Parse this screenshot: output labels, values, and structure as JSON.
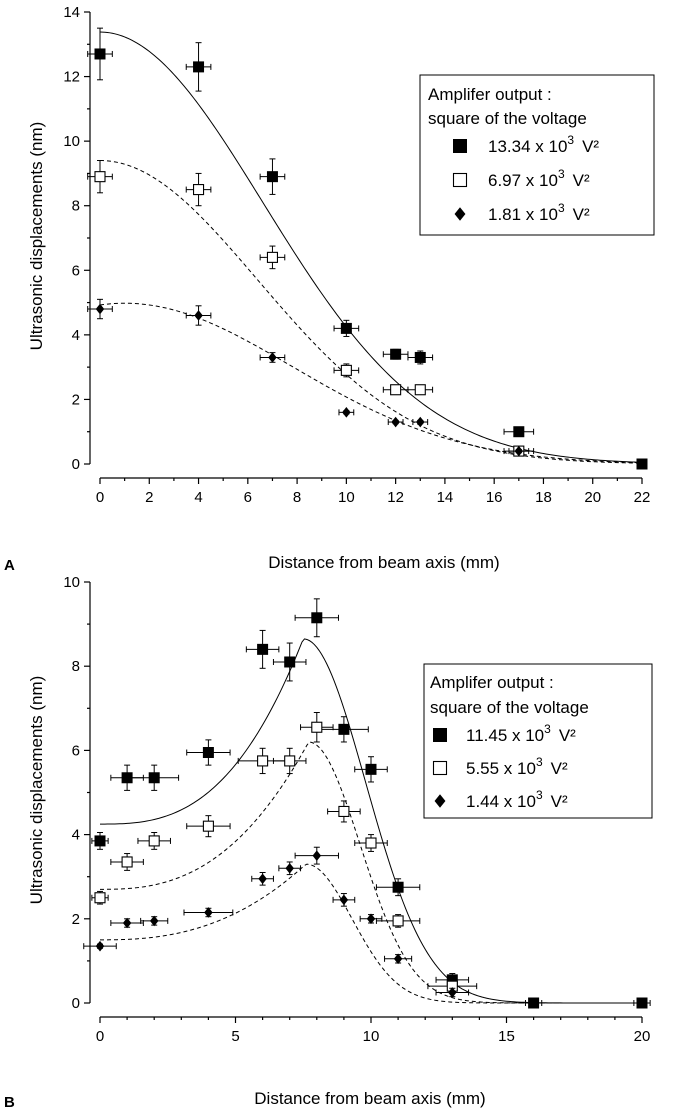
{
  "chart_data": [
    {
      "panel": "A",
      "type": "scatter",
      "xlabel": "Distance from  beam axis (mm)",
      "ylabel": "Ultrasonic displacements (nm)",
      "xlim": [
        0,
        22
      ],
      "ylim": [
        0,
        14
      ],
      "xticks": [
        0,
        2,
        4,
        6,
        8,
        10,
        12,
        14,
        16,
        18,
        20,
        22
      ],
      "yticks": [
        0,
        2,
        4,
        6,
        8,
        10,
        12,
        14
      ],
      "grid": false,
      "legend_position": "top-right",
      "legend_title": [
        "Amplifer output :",
        "square of the voltage"
      ],
      "series": [
        {
          "name": "13.34 x 10^3 V²",
          "label_parts": {
            "mantissa": "13.34",
            "times": "x 10",
            "exponent": "3",
            "unit": "V²"
          },
          "marker": "filled-square",
          "line_style": "solid",
          "points": [
            {
              "x": 0,
              "y": 12.7,
              "xerr": 0.5,
              "yerr": 0.8
            },
            {
              "x": 4,
              "y": 12.3,
              "xerr": 0.5,
              "yerr": 0.75
            },
            {
              "x": 7,
              "y": 8.9,
              "xerr": 0.5,
              "yerr": 0.55
            },
            {
              "x": 10,
              "y": 4.2,
              "xerr": 0.5,
              "yerr": 0.25
            },
            {
              "x": 12,
              "y": 3.4,
              "xerr": 0.5,
              "yerr": 0.15
            },
            {
              "x": 13,
              "y": 3.3,
              "xerr": 0.5,
              "yerr": 0.2
            },
            {
              "x": 17,
              "y": 1.0,
              "xerr": 0.6,
              "yerr": 0.1
            },
            {
              "x": 22,
              "y": 0.0,
              "xerr": 0.2,
              "yerr": 0.05
            }
          ],
          "fit": {
            "amplitude": 13.38,
            "center": 0,
            "sigma": 6.6
          }
        },
        {
          "name": "6.97 x 10^3 V²",
          "label_parts": {
            "mantissa": "6.97",
            "times": "x 10",
            "exponent": "3",
            "unit": "V²"
          },
          "marker": "open-square",
          "line_style": "dashed",
          "points": [
            {
              "x": 0,
              "y": 8.9,
              "xerr": 0.5,
              "yerr": 0.5
            },
            {
              "x": 4,
              "y": 8.5,
              "xerr": 0.5,
              "yerr": 0.5
            },
            {
              "x": 7,
              "y": 6.4,
              "xerr": 0.5,
              "yerr": 0.35
            },
            {
              "x": 10,
              "y": 2.9,
              "xerr": 0.5,
              "yerr": 0.2
            },
            {
              "x": 12,
              "y": 2.3,
              "xerr": 0.5,
              "yerr": 0.1
            },
            {
              "x": 13,
              "y": 2.3,
              "xerr": 0.5,
              "yerr": 0.1
            },
            {
              "x": 17,
              "y": 0.4,
              "xerr": 0.6,
              "yerr": 0.1
            }
          ],
          "fit": {
            "amplitude": 9.4,
            "center": 0,
            "sigma": 6.4
          }
        },
        {
          "name": "1.81 x 10^3 V²",
          "label_parts": {
            "mantissa": "1.81",
            "times": "x 10",
            "exponent": "3",
            "unit": "V²"
          },
          "marker": "filled-diamond",
          "line_style": "dashed",
          "points": [
            {
              "x": 0,
              "y": 4.8,
              "xerr": 0.5,
              "yerr": 0.3
            },
            {
              "x": 4,
              "y": 4.6,
              "xerr": 0.5,
              "yerr": 0.3
            },
            {
              "x": 7,
              "y": 3.3,
              "xerr": 0.5,
              "yerr": 0.15
            },
            {
              "x": 10,
              "y": 1.6,
              "xerr": 0.3,
              "yerr": 0.05
            },
            {
              "x": 12,
              "y": 1.3,
              "xerr": 0.3,
              "yerr": 0.05
            },
            {
              "x": 13,
              "y": 1.3,
              "xerr": 0.3,
              "yerr": 0.05
            },
            {
              "x": 17,
              "y": 0.4,
              "xerr": 0.4,
              "yerr": 0.05
            }
          ],
          "fit": {
            "amplitude": 4.98,
            "center": 1.0,
            "sigma": 6.8
          }
        }
      ]
    },
    {
      "panel": "B",
      "type": "scatter",
      "xlabel": "Distance from beam axis (mm)",
      "ylabel": "Ultrasonic displacements (nm)",
      "xlim": [
        0,
        20
      ],
      "ylim": [
        0,
        10
      ],
      "xticks": [
        0,
        5,
        10,
        15,
        20
      ],
      "yticks": [
        0,
        2,
        4,
        6,
        8,
        10
      ],
      "grid": false,
      "legend_position": "right",
      "legend_title": [
        "Amplifer output :",
        "square of the voltage"
      ],
      "series": [
        {
          "name": "11.45 x 10^3 V²",
          "label_parts": {
            "mantissa": "11.45",
            "times": "x 10",
            "exponent": "3",
            "unit": "V²"
          },
          "marker": "filled-square",
          "line_style": "solid",
          "points": [
            {
              "x": 0,
              "y": 3.85,
              "xerr": 0.3,
              "yerr": 0.2
            },
            {
              "x": 1,
              "y": 5.35,
              "xerr": 0.6,
              "yerr": 0.3
            },
            {
              "x": 2,
              "y": 5.35,
              "xerr": 0.9,
              "yerr": 0.3
            },
            {
              "x": 4,
              "y": 5.95,
              "xerr": 0.8,
              "yerr": 0.3
            },
            {
              "x": 6,
              "y": 8.4,
              "xerr": 0.6,
              "yerr": 0.45
            },
            {
              "x": 7,
              "y": 8.1,
              "xerr": 0.6,
              "yerr": 0.45
            },
            {
              "x": 8,
              "y": 9.15,
              "xerr": 0.8,
              "yerr": 0.45
            },
            {
              "x": 9,
              "y": 6.5,
              "xerr": 0.9,
              "yerr": 0.3
            },
            {
              "x": 10,
              "y": 5.55,
              "xerr": 0.6,
              "yerr": 0.3
            },
            {
              "x": 11,
              "y": 2.75,
              "xerr": 0.8,
              "yerr": 0.2
            },
            {
              "x": 13,
              "y": 0.55,
              "xerr": 0.6,
              "yerr": 0.15
            },
            {
              "x": 16,
              "y": 0.0,
              "xerr": 0.3,
              "yerr": 0.05
            },
            {
              "x": 20,
              "y": 0.0,
              "xerr": 0.3,
              "yerr": 0.05
            }
          ],
          "fit": {
            "baseline": 4.25,
            "peak_x": 7.5,
            "peak_y": 8.65,
            "left_exponent": 2.8,
            "right_sigma": 2.3
          }
        },
        {
          "name": "5.55 x 10^3 V²",
          "label_parts": {
            "mantissa": "5.55",
            "times": "x 10",
            "exponent": "3",
            "unit": "V²"
          },
          "marker": "open-square",
          "line_style": "dashed",
          "points": [
            {
              "x": 0,
              "y": 2.5,
              "xerr": 0.3,
              "yerr": 0.15
            },
            {
              "x": 1,
              "y": 3.35,
              "xerr": 0.6,
              "yerr": 0.2
            },
            {
              "x": 2,
              "y": 3.85,
              "xerr": 0.6,
              "yerr": 0.2
            },
            {
              "x": 4,
              "y": 4.2,
              "xerr": 0.8,
              "yerr": 0.25
            },
            {
              "x": 6,
              "y": 5.75,
              "xerr": 0.9,
              "yerr": 0.3
            },
            {
              "x": 7,
              "y": 5.75,
              "xerr": 0.6,
              "yerr": 0.3
            },
            {
              "x": 8,
              "y": 6.55,
              "xerr": 0.6,
              "yerr": 0.35
            },
            {
              "x": 9,
              "y": 4.55,
              "xerr": 0.6,
              "yerr": 0.25
            },
            {
              "x": 10,
              "y": 3.8,
              "xerr": 0.6,
              "yerr": 0.2
            },
            {
              "x": 11,
              "y": 1.95,
              "xerr": 0.8,
              "yerr": 0.15
            },
            {
              "x": 13,
              "y": 0.4,
              "xerr": 0.9,
              "yerr": 0.15
            }
          ],
          "fit": {
            "baseline": 2.7,
            "peak_x": 7.7,
            "peak_y": 6.2,
            "left_exponent": 2.6,
            "right_sigma": 1.9
          }
        },
        {
          "name": "1.44 x 10^3 V²",
          "label_parts": {
            "mantissa": "1.44",
            "times": "x 10",
            "exponent": "3",
            "unit": "V²"
          },
          "marker": "filled-diamond",
          "line_style": "dashed",
          "points": [
            {
              "x": 0,
              "y": 1.35,
              "xerr": 0.6,
              "yerr": 0.05
            },
            {
              "x": 1,
              "y": 1.9,
              "xerr": 0.6,
              "yerr": 0.1
            },
            {
              "x": 2,
              "y": 1.95,
              "xerr": 0.5,
              "yerr": 0.1
            },
            {
              "x": 4,
              "y": 2.15,
              "xerr": 0.9,
              "yerr": 0.1
            },
            {
              "x": 6,
              "y": 2.95,
              "xerr": 0.4,
              "yerr": 0.15
            },
            {
              "x": 7,
              "y": 3.2,
              "xerr": 0.4,
              "yerr": 0.15
            },
            {
              "x": 8,
              "y": 3.5,
              "xerr": 0.8,
              "yerr": 0.2
            },
            {
              "x": 9,
              "y": 2.45,
              "xerr": 0.4,
              "yerr": 0.15
            },
            {
              "x": 10,
              "y": 2.0,
              "xerr": 0.4,
              "yerr": 0.1
            },
            {
              "x": 11,
              "y": 1.05,
              "xerr": 0.5,
              "yerr": 0.1
            },
            {
              "x": 13,
              "y": 0.25,
              "xerr": 0.6,
              "yerr": 0.1
            }
          ],
          "fit": {
            "baseline": 1.5,
            "peak_x": 7.6,
            "peak_y": 3.3,
            "left_exponent": 2.5,
            "right_sigma": 1.7
          }
        }
      ]
    }
  ]
}
